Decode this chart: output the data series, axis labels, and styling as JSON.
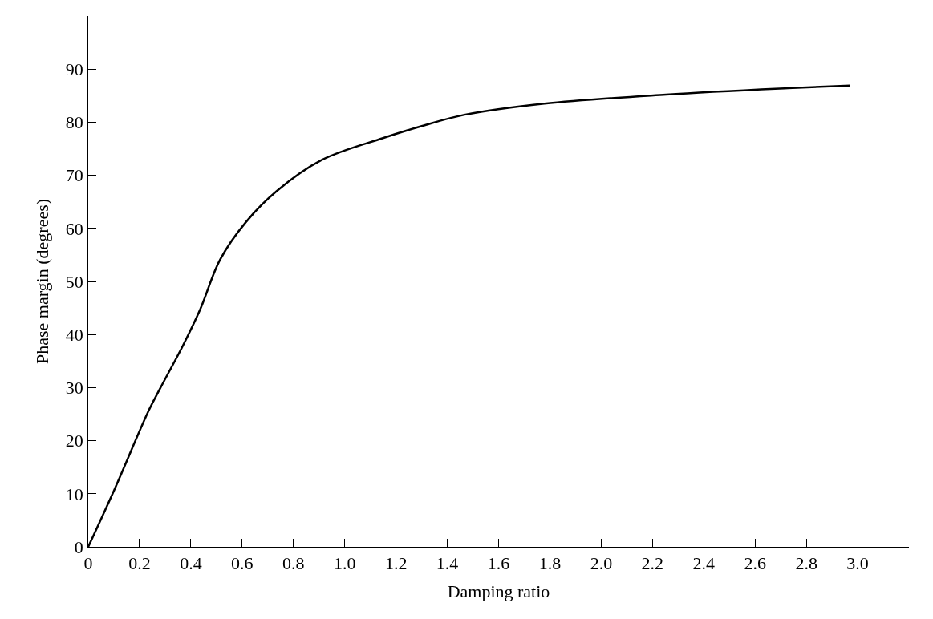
{
  "chart_data": {
    "type": "line",
    "xlabel": "Damping ratio",
    "ylabel": "Phase margin (degrees)",
    "x": [
      0,
      0.104,
      0.235,
      0.282,
      0.37,
      0.437,
      0.514,
      0.615,
      0.734,
      0.911,
      1.149,
      1.303,
      1.467,
      1.778,
      2.253,
      2.728,
      2.97
    ],
    "series": [
      {
        "color": "#000000",
        "values": [
          0,
          11.0,
          25.6,
          30.0,
          38.0,
          44.8,
          54.1,
          61.2,
          67.0,
          72.9,
          77.0,
          79.3,
          81.4,
          83.5,
          85.2,
          86.4,
          86.9
        ]
      }
    ],
    "xlim": [
      0,
      3.2
    ],
    "ylim": [
      0,
      100
    ],
    "xticks": [
      0,
      0.2,
      0.4,
      0.6,
      0.8,
      {
        "value": 1,
        "label": "1.0"
      },
      1.2,
      1.4,
      1.6,
      1.8,
      {
        "value": 2,
        "label": "2.0"
      },
      2.2,
      2.4,
      2.6,
      2.8,
      {
        "value": 3,
        "label": "3.0"
      }
    ],
    "yticks": [
      0,
      10,
      20,
      30,
      40,
      50,
      60,
      70,
      80,
      90
    ],
    "marker": "none",
    "line_style": "solid"
  }
}
